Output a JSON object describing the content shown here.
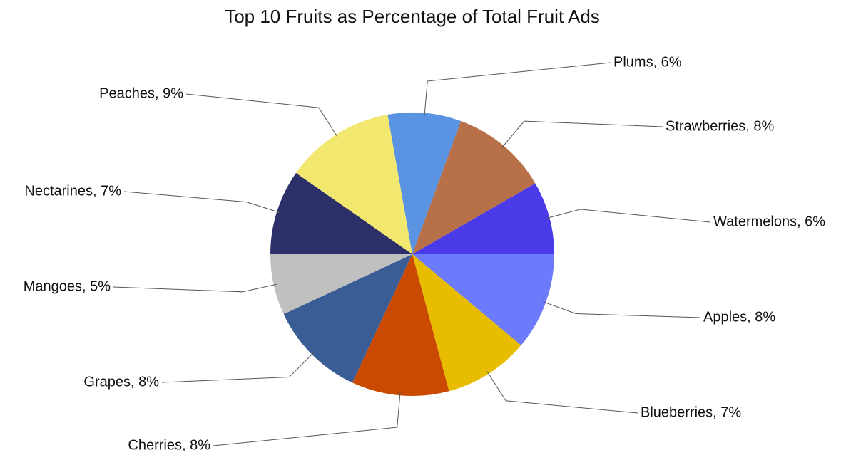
{
  "chart_data": {
    "type": "pie",
    "title": "Top 10 Fruits as Percentage of Total Fruit Ads",
    "categories": [
      "Apples",
      "Blueberries",
      "Cherries",
      "Grapes",
      "Mangoes",
      "Nectarines",
      "Peaches",
      "Plums",
      "Strawberries",
      "Watermelons"
    ],
    "values": [
      8,
      7,
      8,
      8,
      5,
      7,
      9,
      6,
      8,
      6
    ],
    "value_labels": [
      "Apples, 8%",
      "Blueberries, 7%",
      "Cherries, 8%",
      "Grapes, 8%",
      "Mangoes, 5%",
      "Nectarines, 7%",
      "Peaches, 9%",
      "Plums, 6%",
      "Strawberries, 8%",
      "Watermelons, 6%"
    ],
    "colors": [
      "#6b7bfb",
      "#e8bd00",
      "#c94a00",
      "#3a5d96",
      "#c0c0c0",
      "#2d3068",
      "#f2e870",
      "#5b93e3",
      "#b87048",
      "#4a3ae8"
    ]
  }
}
